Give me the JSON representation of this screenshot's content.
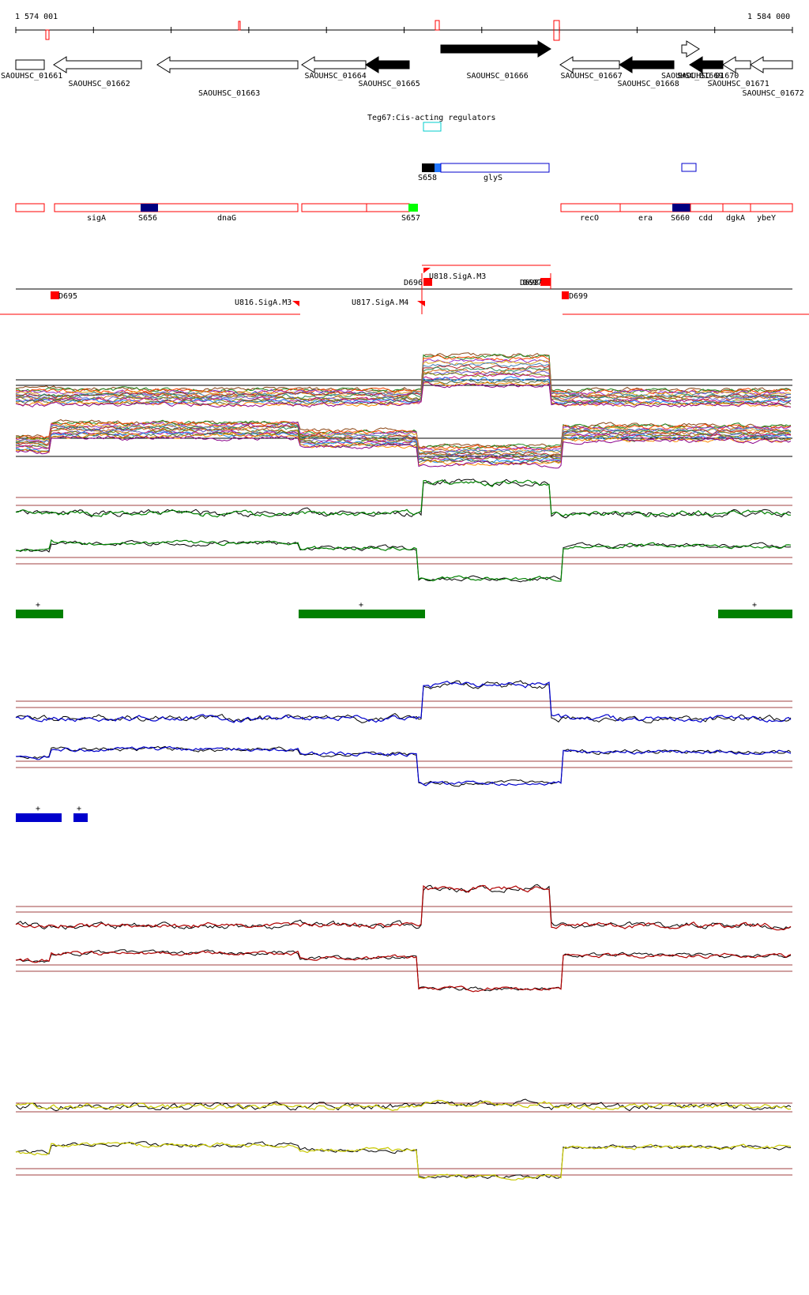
{
  "coords": {
    "start": "1 574 001",
    "end": "1 584 000"
  },
  "genes": [
    {
      "label": "SAOUHSC_01661",
      "x1": 20,
      "x2": 56,
      "dir": "right",
      "filled": false,
      "row": 0,
      "labelRow": 0
    },
    {
      "label": "SAOUHSC_01662",
      "x1": 68,
      "x2": 179,
      "dir": "left",
      "filled": false,
      "row": 0,
      "labelRow": 1
    },
    {
      "label": "SAOUHSC_01663",
      "x1": 199,
      "x2": 377,
      "dir": "left",
      "filled": false,
      "row": 0,
      "labelRow": 2
    },
    {
      "label": "SAOUHSC_01664",
      "x1": 382,
      "x2": 463,
      "dir": "left",
      "filled": false,
      "row": 0,
      "labelRow": 0
    },
    {
      "label": "SAOUHSC_01665",
      "x1": 463,
      "x2": 518,
      "dir": "left",
      "filled": true,
      "row": 0,
      "labelRow": 1
    },
    {
      "label": "SAOUHSC_01666",
      "x1": 558,
      "x2": 697,
      "dir": "right",
      "filled": true,
      "row": -1,
      "labelRow": 0
    },
    {
      "label": "SAOUHSC_01667",
      "x1": 709,
      "x2": 784,
      "dir": "left",
      "filled": false,
      "row": 0,
      "labelRow": 0
    },
    {
      "label": "SAOUHSC_01668",
      "x1": 784,
      "x2": 853,
      "dir": "left",
      "filled": true,
      "row": 0,
      "labelRow": 1
    },
    {
      "label": "SAOUHSC_01669",
      "x1": 863,
      "x2": 885,
      "dir": "right",
      "filled": false,
      "row": -1,
      "labelRow": 0
    },
    {
      "label": "SAOUHSC_01670",
      "x1": 873,
      "x2": 915,
      "dir": "left",
      "filled": true,
      "row": 0,
      "labelRow": 0
    },
    {
      "label": "SAOUHSC_01671",
      "x1": 915,
      "x2": 950,
      "dir": "left",
      "filled": false,
      "row": 0,
      "labelRow": 1
    },
    {
      "label": "SAOUHSC_01672",
      "x1": 950,
      "x2": 1003,
      "dir": "left",
      "filled": false,
      "row": 0,
      "labelRow": 2
    }
  ],
  "regulator_label": "Teg67:Cis-acting regulators",
  "feature_row_a": {
    "labels": [
      "S658",
      "glyS"
    ]
  },
  "feature_row_b": {
    "labels": [
      "sigA",
      "S656",
      "dnaG",
      "S657",
      "recO",
      "era",
      "S660",
      "cdd",
      "dgkA",
      "ybeY"
    ]
  },
  "tss_labels": [
    "D695",
    "U816.SigA.M3",
    "U817.SigA.M4",
    "U818.SigA.M3",
    "D696",
    "D698",
    "D697",
    "D699"
  ],
  "tracks": [
    {
      "name": "profiles-multi",
      "type": "multi"
    },
    {
      "name": "green-profiles",
      "color": "#008000",
      "segments": [
        "+",
        "+",
        "+"
      ]
    },
    {
      "name": "blue-profiles",
      "color": "#0000cc",
      "segments": [
        "+",
        "+"
      ]
    },
    {
      "name": "red-profiles",
      "color": "#b00000",
      "segments": []
    },
    {
      "name": "yellow-profiles",
      "color": "#c8c800",
      "segments": []
    }
  ],
  "colors": {
    "forward_block": "#000000",
    "reverse_outline": "#000000",
    "annotation_red": "#ff0000",
    "threshold_line": "#a04040",
    "green": "#008000",
    "blue": "#0000cc",
    "red": "#b00000",
    "yellow": "#c8c800",
    "cyan": "#00cccc",
    "navy": "#000080",
    "lime": "#00ff00"
  }
}
